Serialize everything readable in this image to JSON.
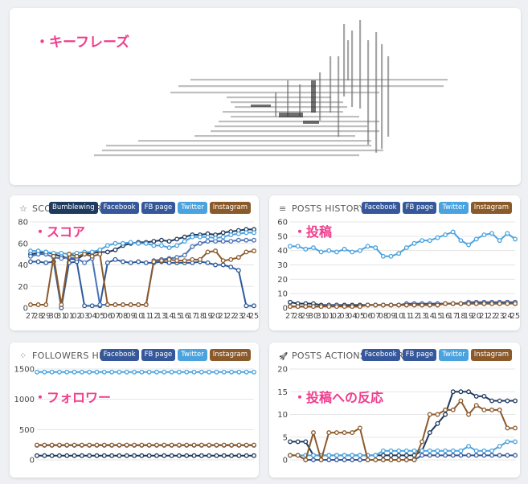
{
  "keyphrase": {
    "annotation": "・キーフレーズ"
  },
  "panels": [
    {
      "id": "score",
      "title": "SCORE HISTORY",
      "icon": "star-icon",
      "annotation": "・スコア",
      "buttons": [
        {
          "label": "Bumblewing",
          "color": "#1e3a5f"
        },
        {
          "label": "Facebook",
          "color": "#36589b"
        },
        {
          "label": "FB page",
          "color": "#36589b"
        },
        {
          "label": "Twitter",
          "color": "#4aa3df"
        },
        {
          "label": "Instagram",
          "color": "#8b5a2b"
        }
      ]
    },
    {
      "id": "posts",
      "title": "POSTS HISTORY",
      "icon": "list-icon",
      "annotation": "・投稿",
      "buttons": [
        {
          "label": "Facebook",
          "color": "#36589b"
        },
        {
          "label": "FB page",
          "color": "#36589b"
        },
        {
          "label": "Twitter",
          "color": "#4aa3df"
        },
        {
          "label": "Instagram",
          "color": "#8b5a2b"
        }
      ]
    },
    {
      "id": "followers",
      "title": "FOLLOWERS HISTORY",
      "icon": "share-nodes-icon",
      "annotation": "・フォロワー",
      "buttons": [
        {
          "label": "Facebook",
          "color": "#36589b"
        },
        {
          "label": "FB page",
          "color": "#36589b"
        },
        {
          "label": "Twitter",
          "color": "#4aa3df"
        },
        {
          "label": "Instagram",
          "color": "#8b5a2b"
        }
      ]
    },
    {
      "id": "actions",
      "title": "POSTS ACTIONS HISTORY",
      "icon": "rocket-icon",
      "annotation": "・投稿への反応",
      "buttons": [
        {
          "label": "Facebook",
          "color": "#36589b"
        },
        {
          "label": "FB page",
          "color": "#36589b"
        },
        {
          "label": "Twitter",
          "color": "#4aa3df"
        },
        {
          "label": "Instagram",
          "color": "#8b5a2b"
        }
      ]
    }
  ],
  "chart_data": [
    {
      "id": "score",
      "type": "line",
      "title": "SCORE HISTORY",
      "x": [
        "27",
        "28",
        "29",
        "30",
        "31",
        "01",
        "02",
        "03",
        "04",
        "05",
        "06",
        "07",
        "08",
        "09",
        "10",
        "11",
        "12",
        "13",
        "14",
        "15",
        "16",
        "17",
        "18",
        "19",
        "20",
        "21",
        "22",
        "23",
        "24",
        "25"
      ],
      "ylim": [
        0,
        80
      ],
      "yticks": [
        0,
        20,
        40,
        60,
        80
      ],
      "series": [
        {
          "name": "Bumblewing",
          "color": "#1e3a5f",
          "values": [
            50,
            51,
            52,
            50,
            48,
            46,
            45,
            50,
            51,
            52,
            52,
            54,
            58,
            60,
            61,
            61,
            62,
            63,
            62,
            64,
            66,
            68,
            68,
            69,
            68,
            70,
            71,
            72,
            73,
            73
          ]
        },
        {
          "name": "Facebook",
          "color": "#2c5a9a",
          "values": [
            43,
            43,
            42,
            43,
            0,
            42,
            43,
            2,
            2,
            2,
            42,
            45,
            43,
            42,
            43,
            42,
            42,
            43,
            42,
            42,
            42,
            42,
            43,
            42,
            40,
            40,
            38,
            35,
            2,
            2
          ]
        },
        {
          "name": "FB page",
          "color": "#4a72b5",
          "values": [
            48,
            50,
            50,
            47,
            46,
            47,
            46,
            42,
            46,
            3,
            3,
            3,
            3,
            3,
            3,
            3,
            44,
            45,
            46,
            47,
            49,
            57,
            60,
            62,
            62,
            62,
            62,
            63,
            63,
            63
          ]
        },
        {
          "name": "Twitter",
          "color": "#4aa3df",
          "values": [
            53,
            53,
            52,
            51,
            51,
            50,
            51,
            52,
            52,
            54,
            58,
            60,
            60,
            61,
            60,
            60,
            58,
            58,
            56,
            58,
            62,
            66,
            66,
            66,
            65,
            66,
            68,
            69,
            70,
            70
          ]
        },
        {
          "name": "Instagram",
          "color": "#8b5a2b",
          "values": [
            3,
            3,
            3,
            48,
            3,
            50,
            48,
            50,
            48,
            50,
            3,
            3,
            3,
            3,
            3,
            3,
            43,
            44,
            45,
            44,
            44,
            45,
            45,
            52,
            53,
            44,
            45,
            47,
            52,
            53
          ]
        }
      ]
    },
    {
      "id": "posts",
      "type": "line",
      "title": "POSTS HISTORY",
      "x": [
        "27",
        "28",
        "29",
        "30",
        "31",
        "01",
        "02",
        "03",
        "04",
        "05",
        "06",
        "07",
        "08",
        "09",
        "10",
        "11",
        "12",
        "13",
        "14",
        "15",
        "16",
        "17",
        "18",
        "19",
        "20",
        "21",
        "22",
        "23",
        "24",
        "25"
      ],
      "ylim": [
        0,
        60
      ],
      "yticks": [
        0,
        10,
        20,
        30,
        40,
        50,
        60
      ],
      "series": [
        {
          "name": "Facebook",
          "color": "#1e3a5f",
          "values": [
            4,
            3,
            3,
            3,
            2,
            2,
            2,
            2,
            2,
            2,
            2,
            2,
            2,
            2,
            2,
            2,
            2,
            2,
            2,
            2,
            3,
            3,
            3,
            3,
            3,
            3,
            3,
            3,
            4,
            3
          ]
        },
        {
          "name": "FB page",
          "color": "#36589b",
          "values": [
            1,
            1,
            1,
            1,
            1,
            2,
            2,
            1,
            1,
            1,
            2,
            2,
            2,
            2,
            2,
            3,
            3,
            3,
            3,
            3,
            3,
            3,
            3,
            4,
            4,
            4,
            4,
            4,
            4,
            4
          ]
        },
        {
          "name": "Twitter",
          "color": "#4aa3df",
          "values": [
            43,
            43,
            41,
            42,
            39,
            40,
            39,
            41,
            39,
            40,
            43,
            42,
            36,
            36,
            38,
            42,
            45,
            47,
            47,
            49,
            51,
            53,
            47,
            44,
            48,
            51,
            52,
            47,
            52,
            48
          ]
        },
        {
          "name": "Instagram",
          "color": "#8b5a2b",
          "values": [
            1,
            1,
            1,
            1,
            1,
            1,
            1,
            1,
            1,
            1,
            2,
            2,
            2,
            2,
            2,
            2,
            2,
            2,
            2,
            2,
            3,
            3,
            3,
            3,
            3,
            3,
            3,
            3,
            3,
            3
          ]
        }
      ]
    },
    {
      "id": "followers",
      "type": "line",
      "title": "FOLLOWERS HISTORY",
      "x": [
        "27",
        "28",
        "29",
        "30",
        "31",
        "01",
        "02",
        "03",
        "04",
        "05",
        "06",
        "07",
        "08",
        "09",
        "10",
        "11",
        "12",
        "13",
        "14",
        "15",
        "16",
        "17",
        "18",
        "19",
        "20",
        "21",
        "22",
        "23",
        "24",
        "25"
      ],
      "ylim": [
        0,
        1500
      ],
      "yticks": [
        0,
        500,
        1000,
        1500
      ],
      "xlabels": false,
      "series": [
        {
          "name": "Facebook",
          "color": "#1e3a5f",
          "values": [
            70,
            70,
            70,
            70,
            70,
            70,
            70,
            70,
            70,
            70,
            70,
            70,
            70,
            70,
            70,
            70,
            70,
            70,
            70,
            70,
            70,
            70,
            70,
            70,
            70,
            70,
            70,
            70,
            70,
            70
          ]
        },
        {
          "name": "FB page",
          "color": "#36589b",
          "values": [
            240,
            240,
            240,
            240,
            240,
            240,
            240,
            240,
            240,
            240,
            240,
            240,
            240,
            240,
            240,
            240,
            240,
            240,
            240,
            240,
            240,
            240,
            240,
            240,
            240,
            240,
            240,
            240,
            240,
            240
          ]
        },
        {
          "name": "Twitter",
          "color": "#4aa3df",
          "values": [
            1450,
            1450,
            1450,
            1450,
            1450,
            1450,
            1450,
            1450,
            1450,
            1450,
            1450,
            1450,
            1450,
            1450,
            1450,
            1450,
            1450,
            1450,
            1450,
            1450,
            1450,
            1450,
            1450,
            1450,
            1450,
            1450,
            1450,
            1450,
            1450,
            1450
          ]
        },
        {
          "name": "Instagram",
          "color": "#8b5a2b",
          "values": [
            245,
            245,
            245,
            245,
            245,
            245,
            245,
            245,
            245,
            245,
            245,
            245,
            245,
            245,
            245,
            245,
            245,
            245,
            245,
            245,
            245,
            245,
            245,
            245,
            245,
            245,
            245,
            245,
            245,
            245
          ]
        }
      ]
    },
    {
      "id": "actions",
      "type": "line",
      "title": "POSTS ACTIONS HISTORY",
      "x": [
        "27",
        "28",
        "29",
        "30",
        "31",
        "01",
        "02",
        "03",
        "04",
        "05",
        "06",
        "07",
        "08",
        "09",
        "10",
        "11",
        "12",
        "13",
        "14",
        "15",
        "16",
        "17",
        "18",
        "19",
        "20",
        "21",
        "22",
        "23",
        "24",
        "25"
      ],
      "ylim": [
        0,
        20
      ],
      "yticks": [
        0,
        5,
        10,
        15,
        20
      ],
      "xlabels": false,
      "series": [
        {
          "name": "Facebook",
          "color": "#1e3a5f",
          "values": [
            4,
            4,
            4,
            1,
            1,
            1,
            1,
            1,
            1,
            1,
            1,
            1,
            1,
            1,
            1,
            1,
            1,
            2,
            6,
            8,
            10,
            15,
            15,
            15,
            14,
            14,
            13,
            13,
            13,
            13
          ]
        },
        {
          "name": "FB page",
          "color": "#36589b",
          "values": [
            1,
            1,
            0,
            0,
            0,
            0,
            0,
            0,
            0,
            0,
            0,
            0,
            0,
            0,
            0,
            0,
            0,
            1,
            1,
            1,
            1,
            1,
            1,
            1,
            1,
            1,
            1,
            1,
            1,
            1
          ]
        },
        {
          "name": "Twitter",
          "color": "#4aa3df",
          "values": [
            1,
            1,
            1,
            1,
            1,
            1,
            1,
            1,
            1,
            1,
            1,
            1,
            2,
            2,
            2,
            2,
            2,
            2,
            2,
            2,
            2,
            2,
            2,
            3,
            2,
            2,
            2,
            3,
            4,
            4
          ]
        },
        {
          "name": "Instagram",
          "color": "#8b5a2b",
          "values": [
            1,
            1,
            0,
            6,
            0,
            6,
            6,
            6,
            6,
            7,
            0,
            0,
            0,
            0,
            0,
            0,
            0,
            4,
            10,
            10,
            11,
            11,
            13,
            10,
            12,
            11,
            11,
            11,
            7,
            7
          ]
        }
      ]
    }
  ]
}
